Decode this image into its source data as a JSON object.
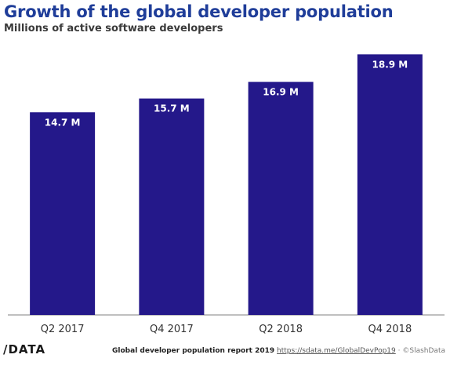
{
  "header": {
    "title": "Growth of the global developer population",
    "subtitle": "Millions of active software developers"
  },
  "footer": {
    "logo": "/DATA",
    "report": "Global developer population report 2019",
    "link": "https://sdata.me/GlobalDevPop19",
    "sep": "·",
    "copyright": "©SlashData"
  },
  "colors": {
    "bar": "#24188a",
    "title": "#1f3d99",
    "axis": "#9a9a9a"
  },
  "chart_data": {
    "type": "bar",
    "title": "Growth of the global developer population",
    "subtitle": "Millions of active software developers",
    "categories": [
      "Q2 2017",
      "Q4 2017",
      "Q2 2018",
      "Q4 2018"
    ],
    "values": [
      14.7,
      15.7,
      16.9,
      18.9
    ],
    "data_labels": [
      "14.7 M",
      "15.7 M",
      "16.9 M",
      "18.9 M"
    ],
    "unit": "M",
    "ylim": [
      0,
      20
    ],
    "grid": false,
    "legend": "none"
  }
}
